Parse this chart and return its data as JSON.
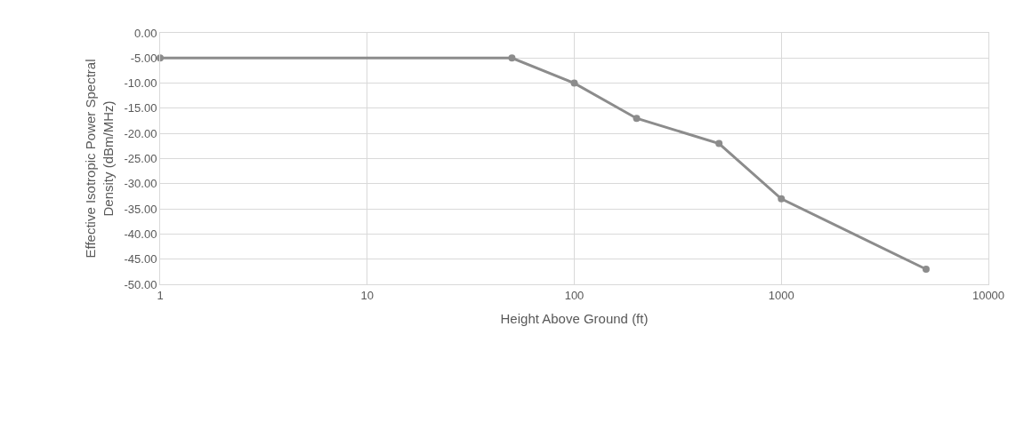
{
  "chart_data": {
    "type": "line",
    "xlabel": "Height Above Ground (ft)",
    "ylabel": "Effective Isotropic Power Spectral Density (dBm/MHz)",
    "x": [
      1,
      50,
      100,
      200,
      500,
      1000,
      5000
    ],
    "series": [
      {
        "color": "#8c8c8c",
        "values": [
          -5,
          -5,
          -10,
          -17,
          -22,
          -33,
          -47
        ]
      }
    ],
    "log": "x",
    "xlim": [
      1,
      10000
    ],
    "xticks": [
      1,
      10,
      100,
      1000,
      10000
    ],
    "ylim": [
      -50,
      0
    ],
    "yticks": [
      {
        "value": 0,
        "label": "0.00"
      },
      {
        "value": -5,
        "label": "-5.00"
      },
      {
        "value": -10,
        "label": "-10.00"
      },
      {
        "value": -15,
        "label": "-15.00"
      },
      {
        "value": -20,
        "label": "-20.00"
      },
      {
        "value": -25,
        "label": "-25.00"
      },
      {
        "value": -30,
        "label": "-30.00"
      },
      {
        "value": -35,
        "label": "-35.00"
      },
      {
        "value": -40,
        "label": "-40.00"
      },
      {
        "value": -45,
        "label": "-45.00"
      },
      {
        "value": -50,
        "label": "-50.00"
      }
    ],
    "grid": true,
    "marker": "circle",
    "line_style": "solid",
    "legend": false
  }
}
